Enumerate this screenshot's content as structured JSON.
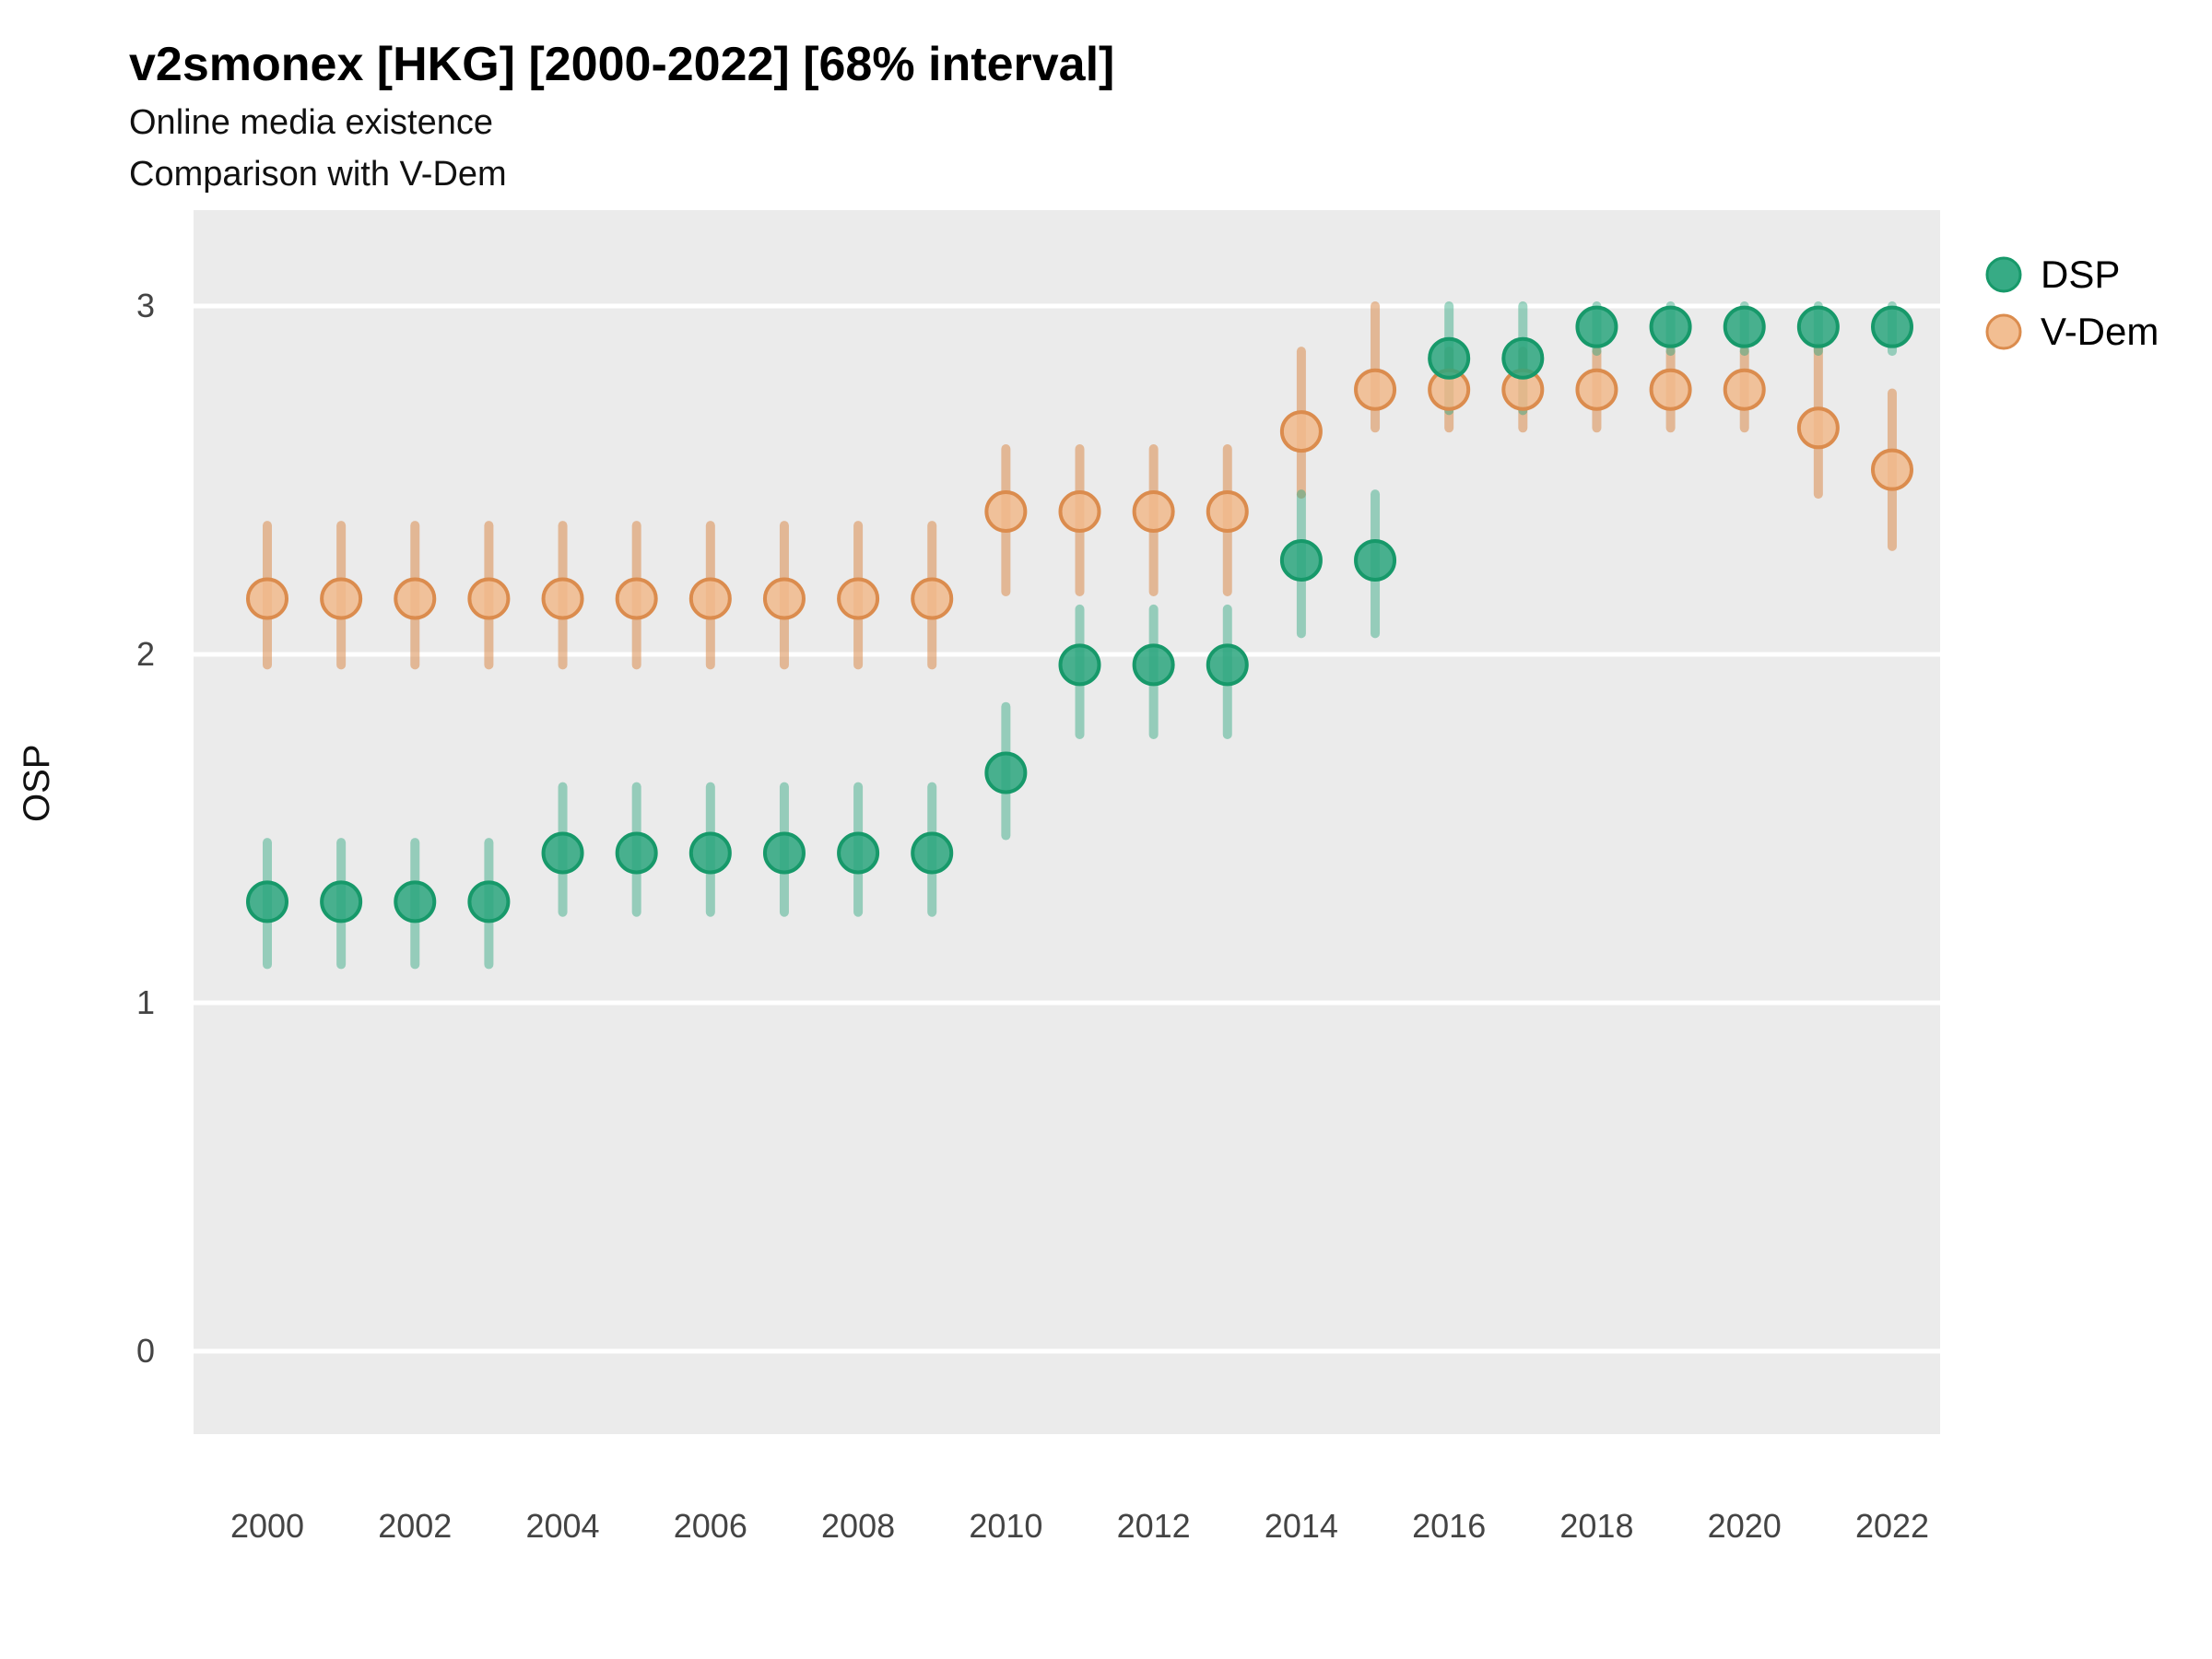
{
  "title": "v2smonex [HKG] [2000-2022] [68% interval]",
  "subtitle_line1": "Online media existence",
  "subtitle_line2": "Comparison with V-Dem",
  "y_axis_label": "OSP",
  "legend": {
    "items": [
      {
        "label": "DSP"
      },
      {
        "label": "V-Dem"
      }
    ]
  },
  "colors": {
    "panel_background": "#EBEBEB",
    "gridline": "#FFFFFF",
    "tick_text": "#444444",
    "dsp_fill": "#2CA67E",
    "dsp_stroke": "#17996A",
    "dsp_bar": "#2CA67E",
    "vdem_fill": "#F1BA8C",
    "vdem_stroke": "#DB8C4E",
    "vdem_bar": "#DB8C4E"
  },
  "chart_data": {
    "type": "scatter",
    "title": "v2smonex [HKG] [2000-2022] [68% interval]",
    "subtitle": [
      "Online media existence",
      "Comparison with V-Dem"
    ],
    "interval": "68%",
    "xlabel": "",
    "ylabel": "OSP",
    "x_ticks": [
      2000,
      2002,
      2004,
      2006,
      2008,
      2010,
      2012,
      2014,
      2016,
      2018,
      2020,
      2022
    ],
    "y_ticks": [
      0,
      1,
      2,
      3
    ],
    "xlim": [
      1999,
      2023.2
    ],
    "ylim": [
      -0.24,
      3.28
    ],
    "grid": true,
    "legend_position": "right",
    "x": [
      2000,
      2001,
      2002,
      2003,
      2004,
      2005,
      2006,
      2007,
      2008,
      2009,
      2010,
      2011,
      2012,
      2013,
      2014,
      2015,
      2016,
      2017,
      2018,
      2019,
      2020,
      2021,
      2022
    ],
    "series": [
      {
        "name": "DSP",
        "point_fill": "#2CA67E",
        "point_stroke": "#17996A",
        "bar_color": "#2CA67E",
        "bar_opacity": 0.45,
        "est": [
          1.29,
          1.29,
          1.29,
          1.29,
          1.43,
          1.43,
          1.43,
          1.43,
          1.43,
          1.43,
          1.66,
          1.97,
          1.97,
          1.97,
          2.27,
          2.27,
          2.85,
          2.85,
          2.94,
          2.94,
          2.94,
          2.94,
          2.94
        ],
        "lo": [
          1.11,
          1.11,
          1.11,
          1.11,
          1.26,
          1.26,
          1.26,
          1.26,
          1.26,
          1.26,
          1.48,
          1.77,
          1.77,
          1.77,
          2.06,
          2.06,
          2.7,
          2.7,
          2.87,
          2.87,
          2.87,
          2.87,
          2.87
        ],
        "hi": [
          1.46,
          1.46,
          1.46,
          1.46,
          1.62,
          1.62,
          1.62,
          1.62,
          1.62,
          1.62,
          1.85,
          2.13,
          2.13,
          2.13,
          2.46,
          2.46,
          3.0,
          3.0,
          3.0,
          3.0,
          3.0,
          3.0,
          3.0
        ]
      },
      {
        "name": "V-Dem",
        "point_fill": "#F1BA8C",
        "point_stroke": "#DB8C4E",
        "bar_color": "#DB8C4E",
        "bar_opacity": 0.55,
        "est": [
          2.16,
          2.16,
          2.16,
          2.16,
          2.16,
          2.16,
          2.16,
          2.16,
          2.16,
          2.16,
          2.41,
          2.41,
          2.41,
          2.41,
          2.64,
          2.76,
          2.76,
          2.76,
          2.76,
          2.76,
          2.76,
          2.65,
          2.53
        ],
        "lo": [
          1.97,
          1.97,
          1.97,
          1.97,
          1.97,
          1.97,
          1.97,
          1.97,
          1.97,
          1.97,
          2.18,
          2.18,
          2.18,
          2.18,
          2.46,
          2.65,
          2.65,
          2.65,
          2.65,
          2.65,
          2.65,
          2.46,
          2.31
        ],
        "hi": [
          2.37,
          2.37,
          2.37,
          2.37,
          2.37,
          2.37,
          2.37,
          2.37,
          2.37,
          2.37,
          2.59,
          2.59,
          2.59,
          2.59,
          2.87,
          3.0,
          2.87,
          2.87,
          2.87,
          2.87,
          2.87,
          2.88,
          2.75
        ]
      }
    ]
  }
}
